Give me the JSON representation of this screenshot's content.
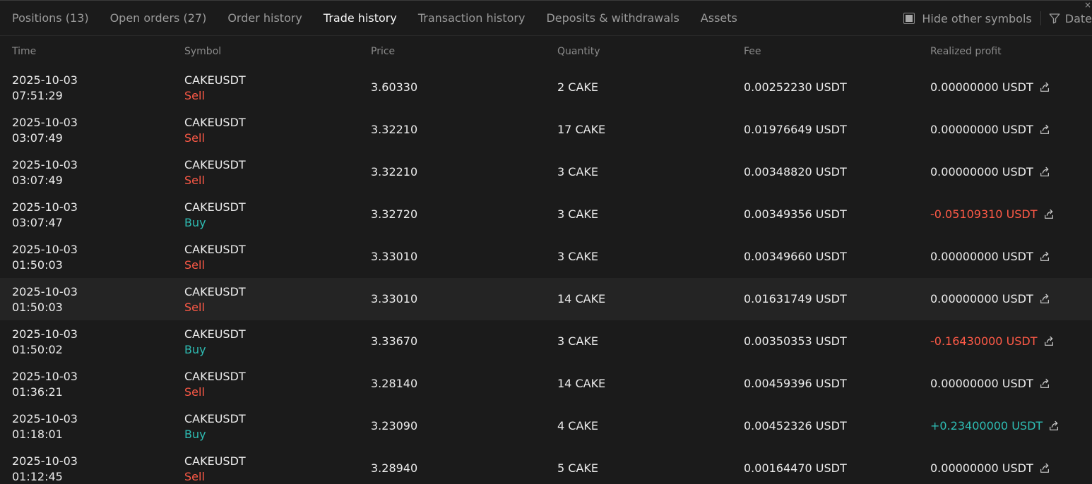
{
  "tabs": [
    {
      "label": "Positions (13)",
      "active": false
    },
    {
      "label": "Open orders (27)",
      "active": false
    },
    {
      "label": "Order history",
      "active": false
    },
    {
      "label": "Trade history",
      "active": true
    },
    {
      "label": "Transaction history",
      "active": false
    },
    {
      "label": "Deposits & withdrawals",
      "active": false
    },
    {
      "label": "Assets",
      "active": false
    }
  ],
  "toolbar": {
    "hide_other_symbols_label": "Hide other symbols",
    "date_label": "Date",
    "close_glyph": "×"
  },
  "columns": {
    "time": "Time",
    "symbol": "Symbol",
    "price": "Price",
    "quantity": "Quantity",
    "fee": "Fee",
    "realized_profit": "Realized profit"
  },
  "colors": {
    "sell": "#ff5a47",
    "buy": "#2ebdb4",
    "background": "#1b1b1b",
    "highlight_row": "#242424"
  },
  "icons": {
    "share": "share-icon",
    "filter": "filter-icon",
    "checkbox": "checkbox-icon"
  },
  "rows": [
    {
      "date": "2025-10-03",
      "time": "07:51:29",
      "symbol": "CAKEUSDT",
      "side": "Sell",
      "price": "3.60330",
      "quantity": "2 CAKE",
      "fee": "0.00252230 USDT",
      "pnl": "0.00000000 USDT",
      "pnl_sign": "zero",
      "highlight": false
    },
    {
      "date": "2025-10-03",
      "time": "03:07:49",
      "symbol": "CAKEUSDT",
      "side": "Sell",
      "price": "3.32210",
      "quantity": "17 CAKE",
      "fee": "0.01976649 USDT",
      "pnl": "0.00000000 USDT",
      "pnl_sign": "zero",
      "highlight": false
    },
    {
      "date": "2025-10-03",
      "time": "03:07:49",
      "symbol": "CAKEUSDT",
      "side": "Sell",
      "price": "3.32210",
      "quantity": "3 CAKE",
      "fee": "0.00348820 USDT",
      "pnl": "0.00000000 USDT",
      "pnl_sign": "zero",
      "highlight": false
    },
    {
      "date": "2025-10-03",
      "time": "03:07:47",
      "symbol": "CAKEUSDT",
      "side": "Buy",
      "price": "3.32720",
      "quantity": "3 CAKE",
      "fee": "0.00349356 USDT",
      "pnl": "-0.05109310 USDT",
      "pnl_sign": "neg",
      "highlight": false
    },
    {
      "date": "2025-10-03",
      "time": "01:50:03",
      "symbol": "CAKEUSDT",
      "side": "Sell",
      "price": "3.33010",
      "quantity": "3 CAKE",
      "fee": "0.00349660 USDT",
      "pnl": "0.00000000 USDT",
      "pnl_sign": "zero",
      "highlight": false
    },
    {
      "date": "2025-10-03",
      "time": "01:50:03",
      "symbol": "CAKEUSDT",
      "side": "Sell",
      "price": "3.33010",
      "quantity": "14 CAKE",
      "fee": "0.01631749 USDT",
      "pnl": "0.00000000 USDT",
      "pnl_sign": "zero",
      "highlight": true
    },
    {
      "date": "2025-10-03",
      "time": "01:50:02",
      "symbol": "CAKEUSDT",
      "side": "Buy",
      "price": "3.33670",
      "quantity": "3 CAKE",
      "fee": "0.00350353 USDT",
      "pnl": "-0.16430000 USDT",
      "pnl_sign": "neg",
      "highlight": false
    },
    {
      "date": "2025-10-03",
      "time": "01:36:21",
      "symbol": "CAKEUSDT",
      "side": "Sell",
      "price": "3.28140",
      "quantity": "14 CAKE",
      "fee": "0.00459396 USDT",
      "pnl": "0.00000000 USDT",
      "pnl_sign": "zero",
      "highlight": false
    },
    {
      "date": "2025-10-03",
      "time": "01:18:01",
      "symbol": "CAKEUSDT",
      "side": "Buy",
      "price": "3.23090",
      "quantity": "4 CAKE",
      "fee": "0.00452326 USDT",
      "pnl": "+0.23400000 USDT",
      "pnl_sign": "pos",
      "highlight": false
    },
    {
      "date": "2025-10-03",
      "time": "01:12:45",
      "symbol": "CAKEUSDT",
      "side": "Sell",
      "price": "3.28940",
      "quantity": "5 CAKE",
      "fee": "0.00164470 USDT",
      "pnl": "0.00000000 USDT",
      "pnl_sign": "zero",
      "highlight": false
    }
  ]
}
